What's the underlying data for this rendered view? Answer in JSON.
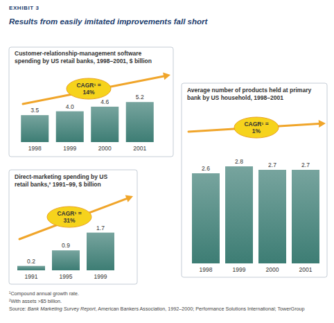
{
  "exhibit": "EXHIBIT 3",
  "title": "Results from easily imitated improvements fall short",
  "chart_data": [
    {
      "type": "bar",
      "title": "Customer-relationship-management software spending by US retail banks, 1998–2001, $ billion",
      "categories": [
        "1998",
        "1999",
        "2000",
        "2001"
      ],
      "values": [
        3.5,
        4.0,
        4.6,
        5.2
      ],
      "value_labels": [
        "3.5",
        "4.0",
        "4.6",
        "5.2"
      ],
      "annotation": "CAGR¹ = 14%",
      "color": "#3d7d74",
      "data_labels": true,
      "tick_labels": "x",
      "ylim": [
        0,
        9
      ]
    },
    {
      "type": "bar",
      "title": "Direct-marketing spending by US retail banks,² 1991–99, $ billion",
      "categories": [
        "1991",
        "1995",
        "1999"
      ],
      "values": [
        0.2,
        0.9,
        1.7
      ],
      "annotation": "CAGR¹ = 31%",
      "color": "#3d7d74",
      "data_labels": true,
      "tick_labels": "x",
      "ylim": [
        0,
        3
      ]
    },
    {
      "type": "bar",
      "title": "Average number of products held at primary bank by US household, 1998–2001",
      "categories": [
        "1998",
        "1999",
        "2000",
        "2001"
      ],
      "values": [
        2.6,
        2.8,
        2.7,
        2.7
      ],
      "annotation": "CAGR¹ = 1%",
      "color": "#3d7d74",
      "data_labels": true,
      "tick_labels": "x",
      "ylim": [
        0,
        4
      ]
    }
  ],
  "footnotes": [
    "¹Compound annual growth rate.",
    "²With assets >$5 billion."
  ],
  "source": [
    "Source: ",
    "Bank Marketing Survey Report",
    ", American Bankers Association, 1992–2000; Performance Solutions International; TowerGroup"
  ]
}
